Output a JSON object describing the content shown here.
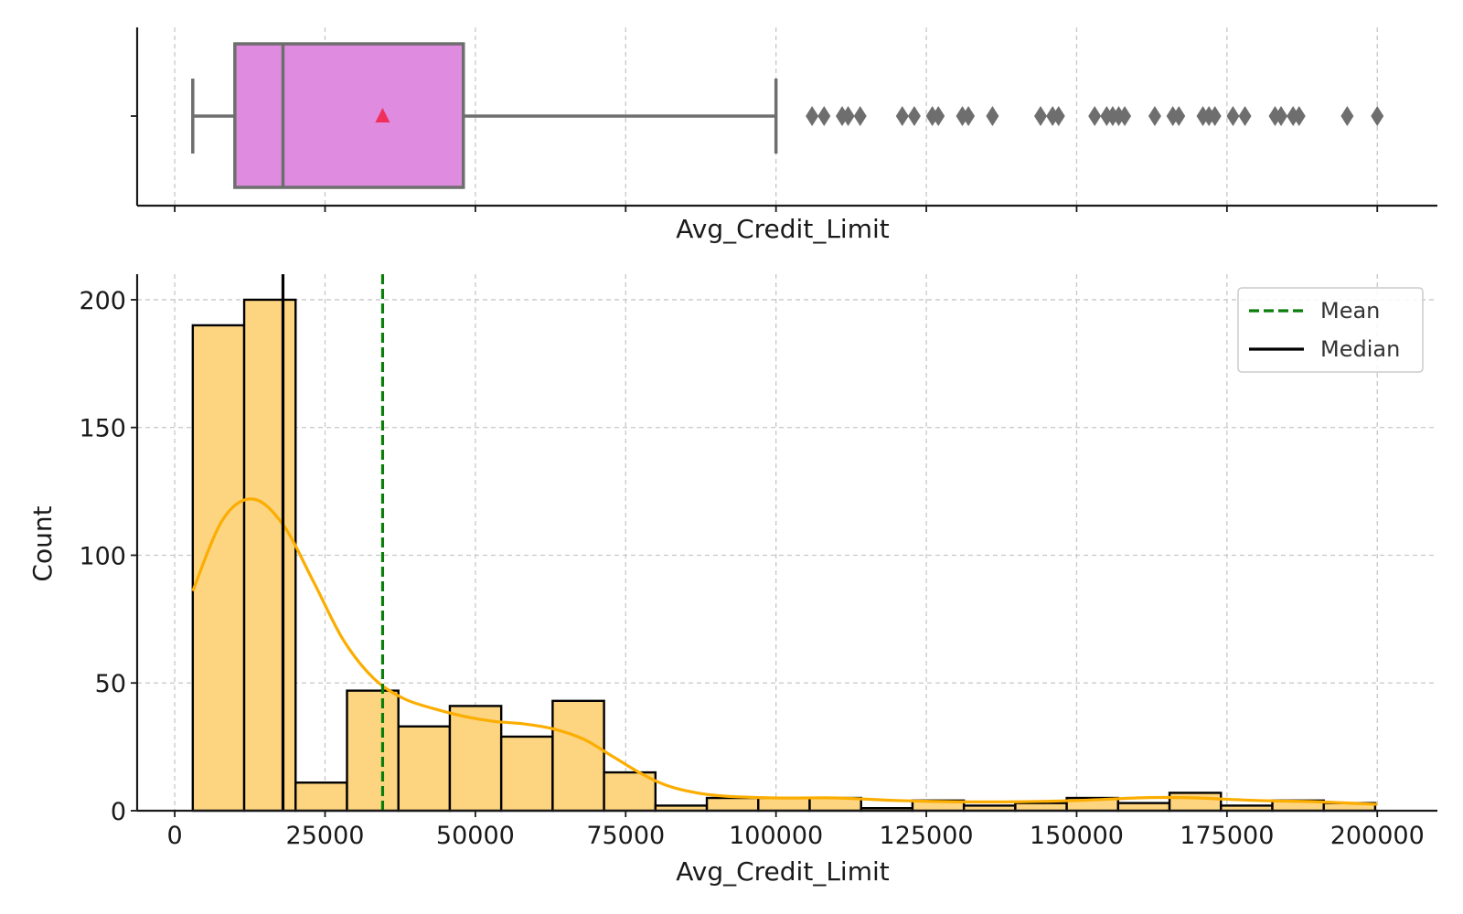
{
  "chart_data": [
    {
      "type": "box",
      "xlabel": "Avg_Credit_Limit",
      "xlim": [
        -6250,
        210000
      ],
      "grid": true,
      "stats": {
        "whisker_low": 3000,
        "q1": 10000,
        "median": 18000,
        "mean": 34574,
        "q3": 48000,
        "whisker_high": 100000
      },
      "outliers": [
        106000,
        108000,
        111000,
        112000,
        114000,
        121000,
        123000,
        126000,
        127000,
        131000,
        132000,
        136000,
        144000,
        146000,
        147000,
        153000,
        155000,
        156000,
        157000,
        158000,
        163000,
        166000,
        167000,
        171000,
        172000,
        173000,
        176000,
        178000,
        183000,
        184000,
        186000,
        187000,
        195000,
        200000
      ],
      "colors": {
        "box": "#df8be0",
        "line": "#6e6e6e",
        "mean_marker": "#f0305a"
      }
    },
    {
      "type": "histogram",
      "xlabel": "Avg_Credit_Limit",
      "ylabel": "Count",
      "xlim": [
        -6250,
        210000
      ],
      "ylim": [
        0,
        210
      ],
      "xticks": [
        0,
        25000,
        50000,
        75000,
        100000,
        125000,
        150000,
        175000,
        200000
      ],
      "yticks": [
        0,
        50,
        100,
        150,
        200
      ],
      "grid": true,
      "bin_edges": [
        3000,
        11550,
        20100,
        28650,
        37200,
        45750,
        54300,
        62850,
        71400,
        79950,
        88500,
        97050,
        105600,
        114150,
        122700,
        131250,
        139800,
        148350,
        156900,
        165450,
        174000,
        182550,
        191100,
        199650
      ],
      "counts": [
        190,
        200,
        11,
        47,
        33,
        41,
        29,
        43,
        15,
        2,
        5,
        5,
        5,
        1,
        4,
        2,
        3,
        5,
        3,
        7,
        2,
        4,
        3
      ],
      "kde": {
        "x": [
          3000,
          8000,
          13000,
          18000,
          23000,
          28000,
          33000,
          38000,
          43000,
          48000,
          53000,
          58000,
          63000,
          68000,
          73000,
          78000,
          83000,
          90000,
          100000,
          110000,
          120000,
          130000,
          140000,
          150000,
          160000,
          165000,
          170000,
          180000,
          190000,
          200000
        ],
        "y": [
          86,
          114,
          122,
          112,
          90,
          67,
          52,
          44,
          40,
          37,
          35,
          34,
          32,
          28,
          21,
          14,
          9,
          6,
          5,
          5,
          4,
          3.5,
          3.5,
          4,
          5,
          5.2,
          5,
          4,
          3.5,
          2.5
        ]
      },
      "reference_lines": [
        {
          "name": "Mean",
          "value": 34574,
          "style": "dashed",
          "color": "#0a7d0a"
        },
        {
          "name": "Median",
          "value": 18000,
          "style": "solid",
          "color": "#000000"
        }
      ],
      "legend": {
        "placement": "top-right",
        "entries": [
          "Mean",
          "Median"
        ]
      },
      "colors": {
        "bar_fill": "#fdd47f",
        "bar_edge": "#000000",
        "kde": "#fbad00",
        "grid": "#c8c8c8"
      }
    }
  ]
}
